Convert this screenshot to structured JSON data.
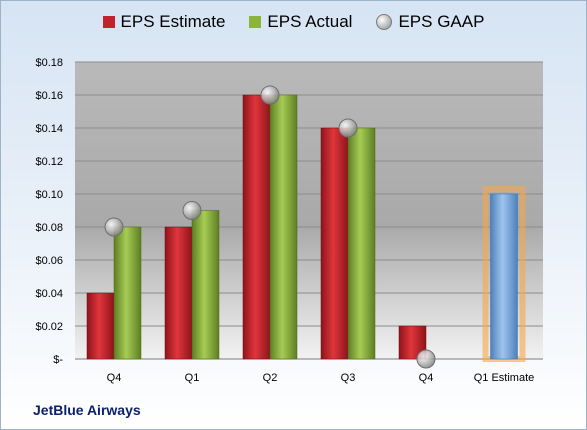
{
  "chart_data": {
    "type": "bar",
    "categories": [
      "Q4",
      "Q1",
      "Q2",
      "Q3",
      "Q4",
      "Q1 Estimate"
    ],
    "series": [
      {
        "name": "EPS Estimate",
        "values": [
          0.04,
          0.08,
          0.16,
          0.14,
          0.02,
          null
        ],
        "color": "#c0232b"
      },
      {
        "name": "EPS Actual",
        "values": [
          0.08,
          0.09,
          0.16,
          0.14,
          null,
          null
        ],
        "color": "#8cb33a"
      },
      {
        "name": "EPS GAAP",
        "values": [
          0.08,
          0.09,
          0.16,
          0.14,
          0.0,
          null
        ],
        "color": "#b8b8b8"
      }
    ],
    "forecast": {
      "category": "Q1 Estimate",
      "value": 0.1,
      "color": "#6a9fd8",
      "glow": "#f5a64a"
    },
    "ylim": [
      0,
      0.18
    ],
    "yticks": [
      0,
      0.02,
      0.04,
      0.06,
      0.08,
      0.1,
      0.12,
      0.14,
      0.16,
      0.18
    ],
    "ytick_labels": [
      "$-",
      "$0.02",
      "$0.04",
      "$0.06",
      "$0.08",
      "$0.10",
      "$0.12",
      "$0.14",
      "$0.16",
      "$0.18"
    ],
    "grid": true,
    "legend_position": "top"
  },
  "company": "JetBlue Airways"
}
